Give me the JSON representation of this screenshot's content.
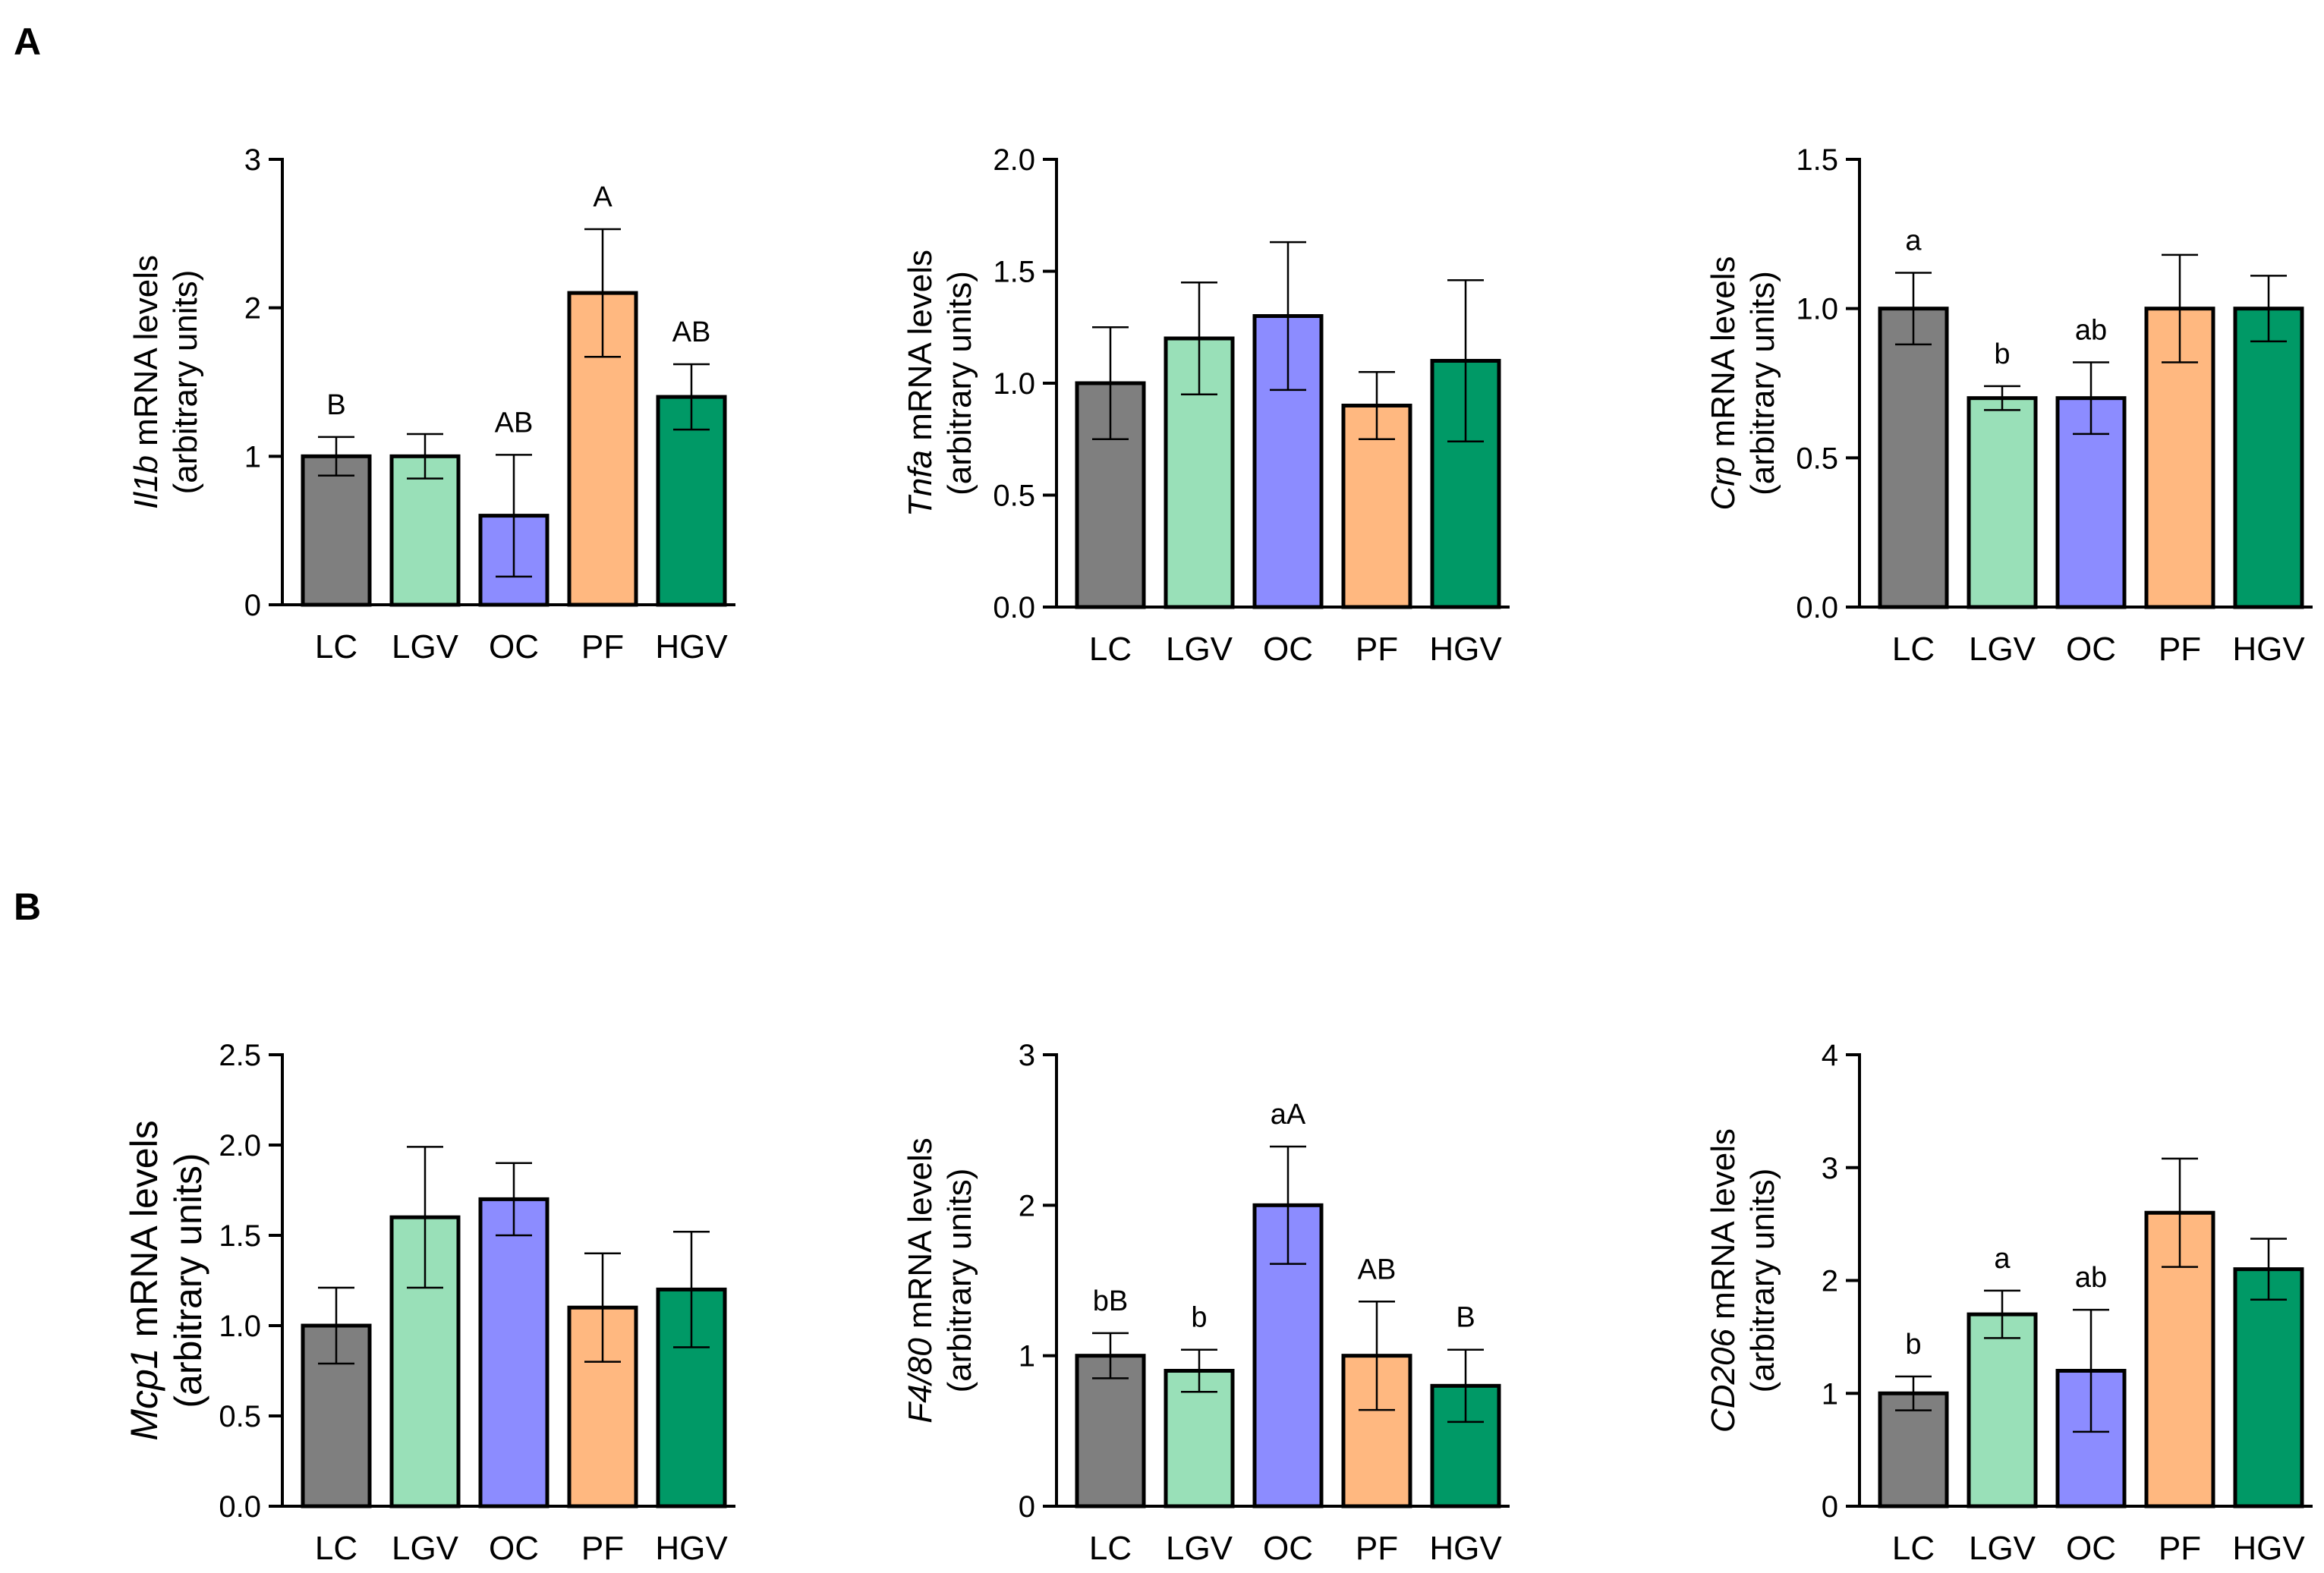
{
  "panels": [
    {
      "label": "A"
    },
    {
      "label": "B"
    }
  ],
  "colors": {
    "LC": "#7f7f7f",
    "LGV": "#99e0b8",
    "OC": "#8c8cff",
    "PF": "#ffb880",
    "HGV": "#009966"
  },
  "chart_data": [
    {
      "type": "bar",
      "panel": "A",
      "gene": "Il1b",
      "ylabel_rest": " mRNA levels",
      "ylabel_line2": "(arbitrary units)",
      "categories": [
        "LC",
        "LGV",
        "OC",
        "PF",
        "HGV"
      ],
      "values": [
        1.0,
        1.0,
        0.6,
        2.1,
        1.4
      ],
      "errors": [
        0.13,
        0.15,
        0.41,
        0.43,
        0.22
      ],
      "annotations": [
        "B",
        "",
        "AB",
        "A",
        "AB"
      ],
      "ylim": [
        0,
        3
      ],
      "yticks": [
        0,
        1,
        2,
        3
      ],
      "ytick_labels": [
        "0",
        "1",
        "2",
        "3"
      ]
    },
    {
      "type": "bar",
      "panel": "A",
      "gene": "Tnfa",
      "ylabel_rest": " mRNA levels",
      "ylabel_line2": "(arbitrary units)",
      "categories": [
        "LC",
        "LGV",
        "OC",
        "PF",
        "HGV"
      ],
      "values": [
        1.0,
        1.2,
        1.3,
        0.9,
        1.1
      ],
      "errors": [
        0.25,
        0.25,
        0.33,
        0.15,
        0.36
      ],
      "annotations": [
        "",
        "",
        "",
        "",
        ""
      ],
      "ylim": [
        0,
        2
      ],
      "yticks": [
        0,
        0.5,
        1.0,
        1.5,
        2.0
      ],
      "ytick_labels": [
        "0.0",
        "0.5",
        "1.0",
        "1.5",
        "2.0"
      ]
    },
    {
      "type": "bar",
      "panel": "A",
      "gene": "Crp",
      "ylabel_rest": " mRNA levels",
      "ylabel_line2": "(arbitrary units)",
      "categories": [
        "LC",
        "LGV",
        "OC",
        "PF",
        "HGV"
      ],
      "values": [
        1.0,
        0.7,
        0.7,
        1.0,
        1.0
      ],
      "errors": [
        0.12,
        0.04,
        0.12,
        0.18,
        0.11
      ],
      "annotations": [
        "a",
        "b",
        "ab",
        "",
        ""
      ],
      "ylim": [
        0,
        1.5
      ],
      "yticks": [
        0,
        0.5,
        1.0,
        1.5
      ],
      "ytick_labels": [
        "0.0",
        "0.5",
        "1.0",
        "1.5"
      ]
    },
    {
      "type": "bar",
      "panel": "B",
      "gene": "Mcp1",
      "ylabel_rest": " mRNA levels",
      "ylabel_line2": "(arbitrary units)",
      "categories": [
        "LC",
        "LGV",
        "OC",
        "PF",
        "HGV"
      ],
      "values": [
        1.0,
        1.6,
        1.7,
        1.1,
        1.2
      ],
      "errors": [
        0.21,
        0.39,
        0.2,
        0.3,
        0.32
      ],
      "annotations": [
        "",
        "",
        "",
        "",
        ""
      ],
      "ylim": [
        0,
        2.5
      ],
      "yticks": [
        0,
        0.5,
        1.0,
        1.5,
        2.0,
        2.5
      ],
      "ytick_labels": [
        "0.0",
        "0.5",
        "1.0",
        "1.5",
        "2.0",
        "2.5"
      ]
    },
    {
      "type": "bar",
      "panel": "B",
      "gene": "F4/80",
      "ylabel_rest": " mRNA levels",
      "ylabel_line2": "(arbitrary units)",
      "categories": [
        "LC",
        "LGV",
        "OC",
        "PF",
        "HGV"
      ],
      "values": [
        1.0,
        0.9,
        2.0,
        1.0,
        0.8
      ],
      "errors": [
        0.15,
        0.14,
        0.39,
        0.36,
        0.24
      ],
      "annotations": [
        "bB",
        "b",
        "aA",
        "AB",
        "B"
      ],
      "ylim": [
        0,
        3
      ],
      "yticks": [
        0,
        1,
        2,
        3
      ],
      "ytick_labels": [
        "0",
        "1",
        "2",
        "3"
      ]
    },
    {
      "type": "bar",
      "panel": "B",
      "gene": "CD206",
      "ylabel_rest": " mRNA levels",
      "ylabel_line2": "(arbitrary units)",
      "categories": [
        "LC",
        "LGV",
        "OC",
        "PF",
        "HGV"
      ],
      "values": [
        1.0,
        1.7,
        1.2,
        2.6,
        2.1
      ],
      "errors": [
        0.15,
        0.21,
        0.54,
        0.48,
        0.27
      ],
      "annotations": [
        "b",
        "a",
        "ab",
        "",
        ""
      ],
      "ylim": [
        0,
        4
      ],
      "yticks": [
        0,
        1,
        2,
        3,
        4
      ],
      "ytick_labels": [
        "0",
        "1",
        "2",
        "3",
        "4"
      ]
    }
  ]
}
